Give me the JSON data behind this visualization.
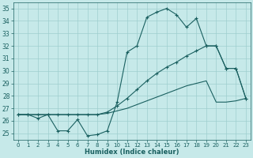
{
  "xlabel": "Humidex (Indice chaleur)",
  "ylabel": "",
  "xlim": [
    -0.5,
    23.5
  ],
  "ylim": [
    24.5,
    35.5
  ],
  "yticks": [
    25,
    26,
    27,
    28,
    29,
    30,
    31,
    32,
    33,
    34,
    35
  ],
  "xticks": [
    0,
    1,
    2,
    3,
    4,
    5,
    6,
    7,
    8,
    9,
    10,
    11,
    12,
    13,
    14,
    15,
    16,
    17,
    18,
    19,
    20,
    21,
    22,
    23
  ],
  "background_color": "#c6e9e9",
  "grid_color": "#9ecece",
  "line_color": "#1a6060",
  "line_jagged": [
    26.5,
    26.5,
    26.2,
    26.5,
    25.2,
    25.2,
    26.1,
    24.8,
    24.9,
    25.2,
    27.5,
    31.5,
    32.0,
    34.3,
    34.7,
    35.0,
    34.5,
    33.5,
    34.2,
    32.0,
    32.0,
    30.2,
    30.2,
    27.8
  ],
  "line_upper": [
    26.5,
    26.5,
    26.5,
    26.5,
    26.5,
    26.5,
    26.5,
    26.5,
    26.5,
    26.7,
    27.2,
    27.8,
    28.5,
    29.2,
    29.8,
    30.3,
    30.7,
    31.2,
    31.6,
    32.0,
    32.0,
    30.2,
    30.2,
    27.8
  ],
  "line_lower": [
    26.5,
    26.5,
    26.5,
    26.5,
    26.5,
    26.5,
    26.5,
    26.5,
    26.5,
    26.6,
    26.8,
    27.0,
    27.3,
    27.6,
    27.9,
    28.2,
    28.5,
    28.8,
    29.0,
    29.2,
    27.5,
    27.5,
    27.6,
    27.8
  ]
}
